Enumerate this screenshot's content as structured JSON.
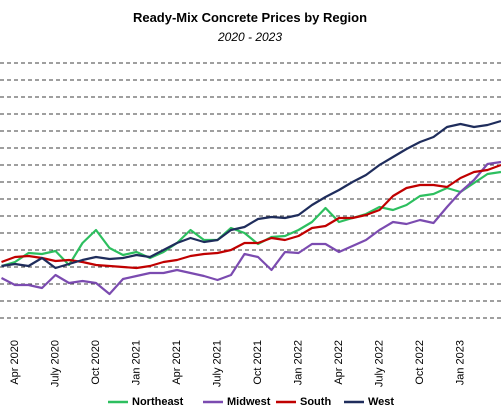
{
  "chart_data": {
    "type": "line",
    "title": "Ready-Mix Concrete Prices by Region",
    "subtitle": "2020 - 2023",
    "categories": [
      null,
      "Apr 2020",
      null,
      null,
      "July 2020",
      null,
      null,
      "Oct 2020",
      null,
      null,
      "Jan 2021",
      null,
      null,
      "Apr 2021",
      null,
      null,
      "July 2021",
      null,
      null,
      "Oct 2021",
      null,
      null,
      "Jan 2022",
      null,
      null,
      "Apr 2022",
      null,
      null,
      "July 2022",
      null,
      null,
      "Oct 2022",
      null,
      null,
      "Jan 2023",
      null,
      null,
      null
    ],
    "series": [
      {
        "name": "Northeast",
        "color": "#2dbf5f",
        "values": [
          69,
          73,
          82,
          81,
          84,
          70,
          92,
          105,
          87,
          80,
          83,
          77,
          83,
          92,
          105,
          95,
          95,
          107,
          102,
          91,
          98,
          99,
          105,
          113,
          127,
          113,
          117,
          121,
          128,
          125,
          130,
          139,
          141,
          147,
          143,
          152,
          161,
          163
        ]
      },
      {
        "name": "Midwest",
        "color": "#7b4bb0",
        "values": [
          57,
          50,
          50,
          47,
          60,
          52,
          54,
          52,
          41,
          56,
          59,
          62,
          62,
          65,
          62,
          59,
          55,
          60,
          81,
          78,
          65,
          83,
          82,
          91,
          91,
          83,
          89,
          95,
          105,
          113,
          111,
          115,
          112,
          128,
          143,
          155,
          171,
          173
        ]
      },
      {
        "name": "South",
        "color": "#c00000",
        "values": [
          73,
          78,
          79,
          77,
          74,
          75,
          73,
          70,
          69,
          68,
          67,
          69,
          73,
          75,
          79,
          81,
          82,
          85,
          92,
          92,
          97,
          95,
          99,
          107,
          109,
          117,
          117,
          120,
          125,
          139,
          147,
          150,
          150,
          148,
          157,
          163,
          165,
          170
        ]
      },
      {
        "name": "West",
        "color": "#1f2d5c",
        "values": [
          69,
          71,
          69,
          77,
          67,
          71,
          75,
          78,
          76,
          77,
          80,
          78,
          85,
          92,
          97,
          93,
          95,
          105,
          108,
          116,
          118,
          117,
          120,
          130,
          138,
          145,
          153,
          160,
          170,
          178,
          186,
          193,
          198,
          208,
          211,
          208,
          210,
          214
        ]
      }
    ],
    "ylim": [
      0,
      289
    ],
    "yticks": [
      17,
      34,
      51,
      68,
      85,
      102,
      119,
      136,
      153,
      170,
      187,
      204,
      221,
      238,
      255,
      272
    ],
    "grid": true
  }
}
